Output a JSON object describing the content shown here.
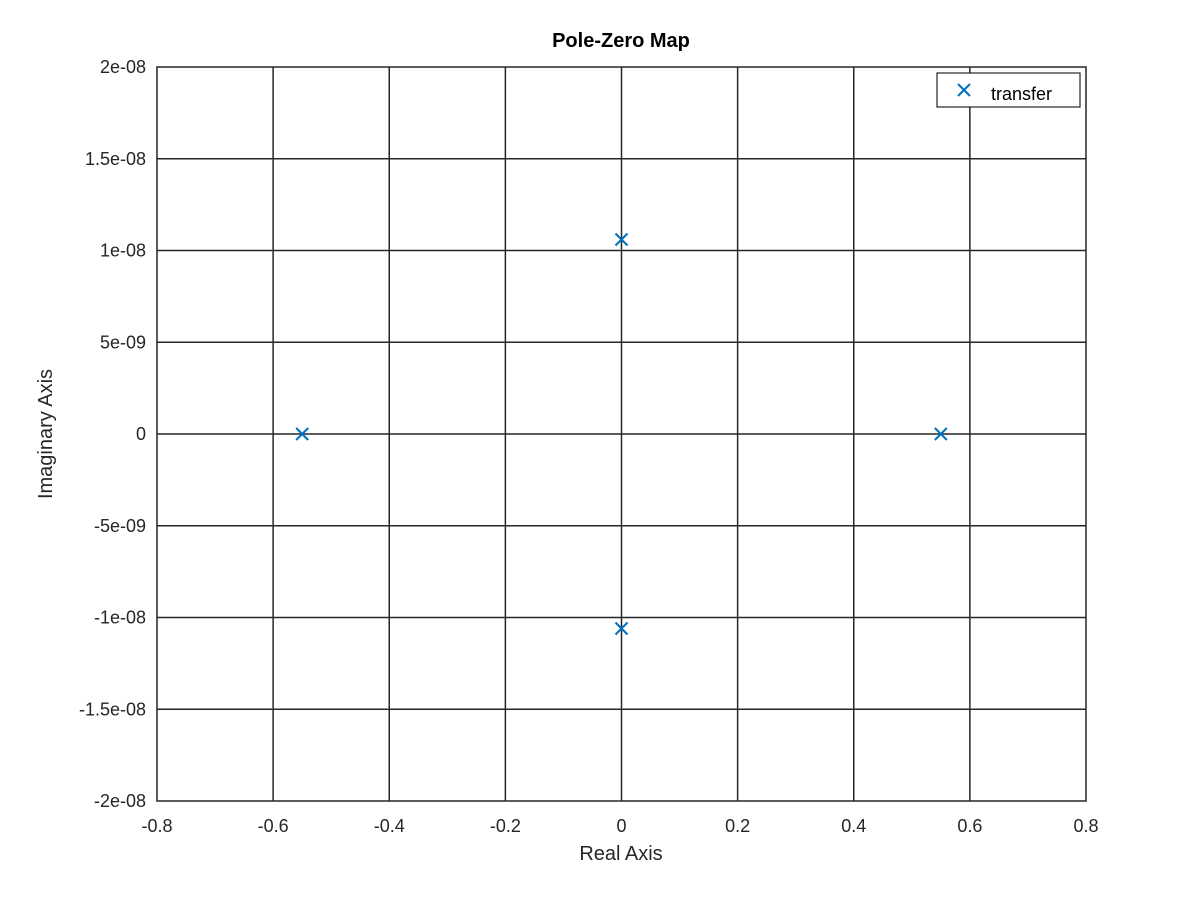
{
  "chart_data": {
    "type": "scatter",
    "title": "Pole-Zero Map",
    "xlabel": "Real Axis",
    "ylabel": "Imaginary Axis",
    "xlim": [
      -0.8,
      0.8
    ],
    "ylim": [
      -2e-08,
      2e-08
    ],
    "x_ticks": [
      -0.8,
      -0.6,
      -0.4,
      -0.2,
      0,
      0.2,
      0.4,
      0.6,
      0.8
    ],
    "x_tick_labels": [
      "-0.8",
      "-0.6",
      "-0.4",
      "-0.2",
      "0",
      "0.2",
      "0.4",
      "0.6",
      "0.8"
    ],
    "y_ticks": [
      2e-08,
      1.5e-08,
      1e-08,
      5e-09,
      0,
      -5e-09,
      -1e-08,
      -1.5e-08,
      -2e-08
    ],
    "y_tick_labels": [
      "2e-08",
      "1.5e-08",
      "1e-08",
      "5e-09",
      "0",
      "-5e-09",
      "-1e-08",
      "-1.5e-08",
      "-2e-08"
    ],
    "grid": true,
    "legend": {
      "position": "top-right",
      "entries": [
        "transfer"
      ]
    },
    "series": [
      {
        "name": "transfer",
        "marker": "x",
        "color": "#0072bd",
        "points": [
          {
            "x": -0.55,
            "y": 0
          },
          {
            "x": 0.0,
            "y": 1.06e-08
          },
          {
            "x": 0.0,
            "y": -1.06e-08
          },
          {
            "x": 0.55,
            "y": 0
          }
        ]
      }
    ]
  }
}
